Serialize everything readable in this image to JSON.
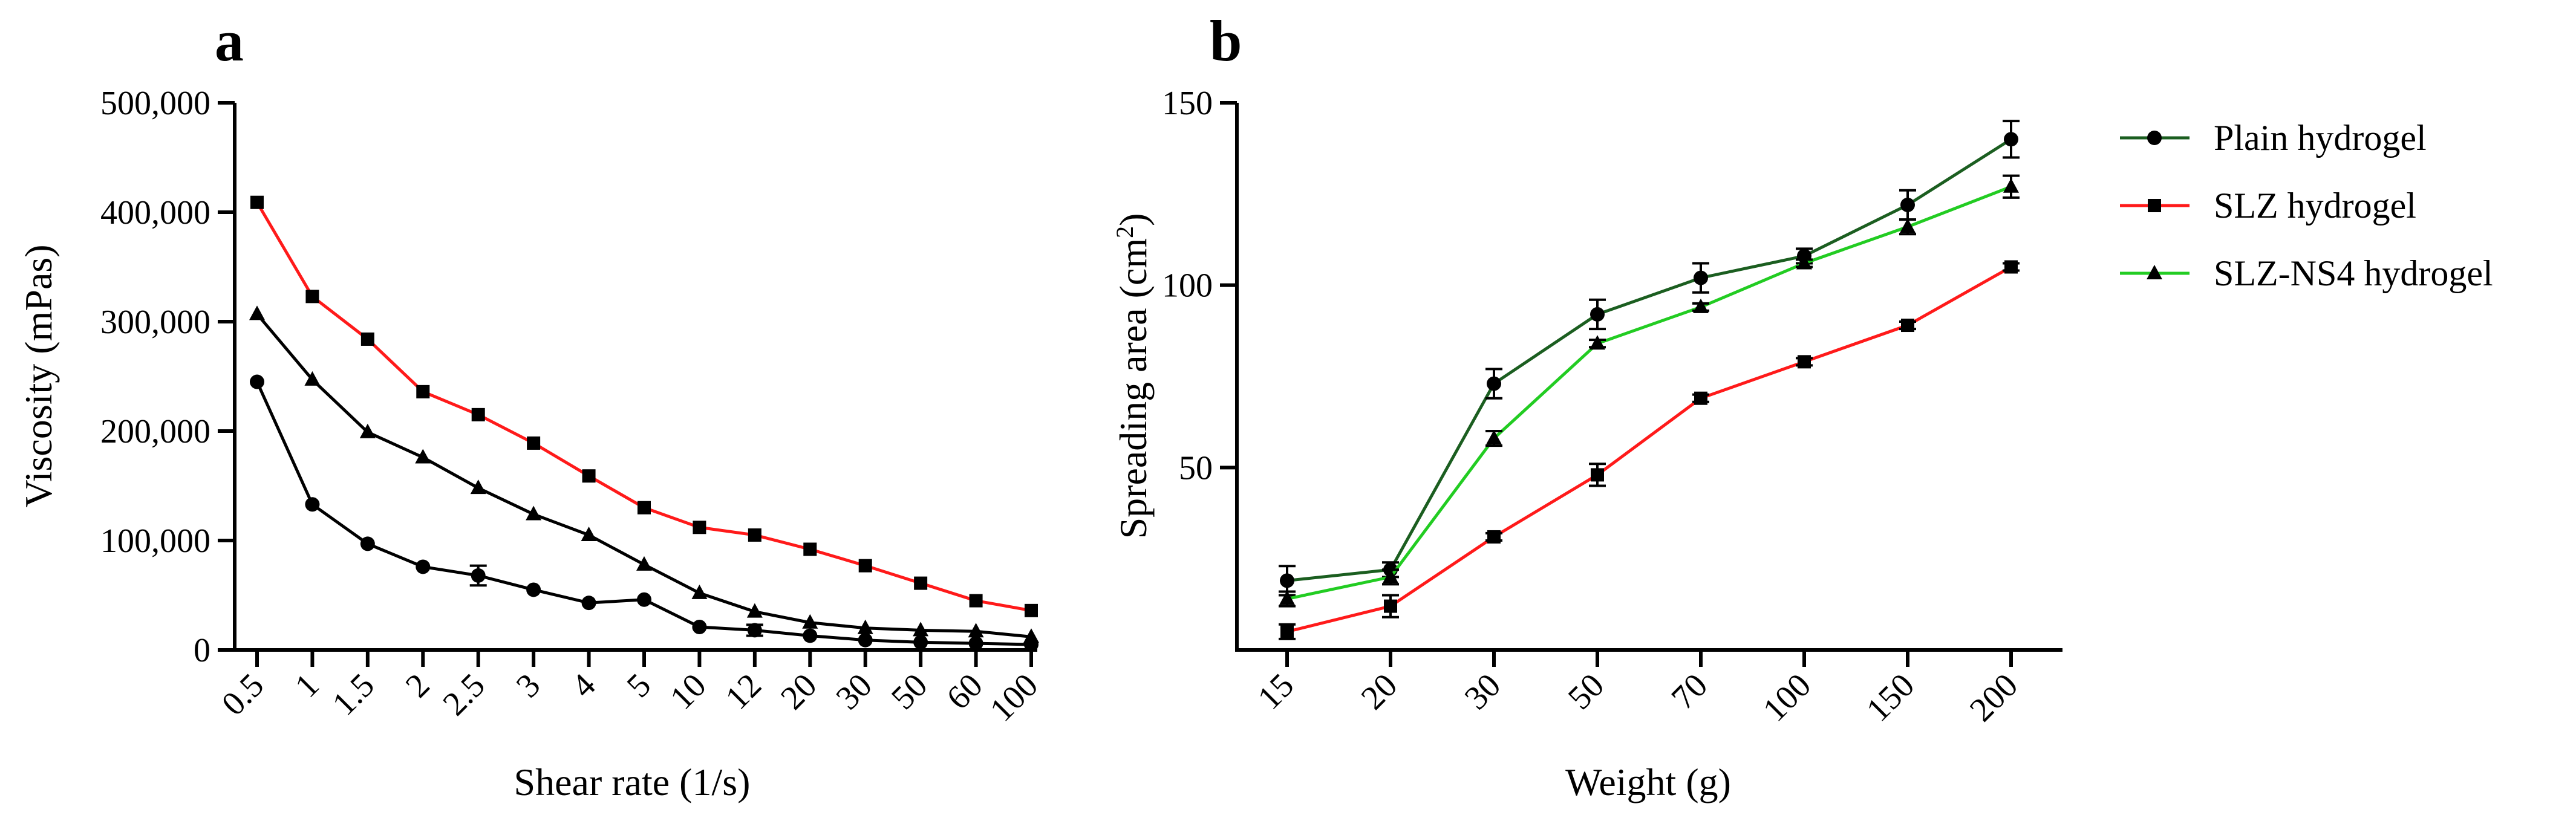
{
  "colors": {
    "plain": "#1b5e20",
    "slz": "#ff1a1a",
    "slz_ns4": "#22cc22",
    "black": "#000000"
  },
  "legend": {
    "items": [
      {
        "label": "Plain hydrogel",
        "color_key": "plain",
        "marker": "circle"
      },
      {
        "label": "SLZ hydrogel",
        "color_key": "slz",
        "marker": "square"
      },
      {
        "label": "SLZ-NS4 hydrogel",
        "color_key": "slz_ns4",
        "marker": "triangle"
      }
    ]
  },
  "chart_data": [
    {
      "panel": "a",
      "type": "line",
      "xlabel": "Shear rate (1/s)",
      "ylabel": "Viscosity (mPas)",
      "ylim": [
        0,
        500000
      ],
      "yticks": [
        0,
        100000,
        200000,
        300000,
        400000,
        500000
      ],
      "ytick_labels": [
        "0",
        "100,000",
        "200,000",
        "300,000",
        "400,000",
        "500,000"
      ],
      "categories": [
        "0.5",
        "1",
        "1.5",
        "2",
        "2.5",
        "3",
        "4",
        "5",
        "10",
        "12",
        "20",
        "30",
        "50",
        "60",
        "100"
      ],
      "series": [
        {
          "name": "circle series",
          "color_key": "black",
          "marker": "circle",
          "values": [
            245000,
            133000,
            97000,
            76000,
            68000,
            55000,
            43000,
            46000,
            21000,
            18000,
            13000,
            9000,
            7000,
            6000,
            5000
          ],
          "errors": [
            0,
            0,
            0,
            0,
            9000,
            0,
            0,
            0,
            0,
            5000,
            0,
            0,
            0,
            0,
            0
          ]
        },
        {
          "name": "triangle series",
          "color_key": "black",
          "marker": "triangle",
          "values": [
            307000,
            247000,
            199000,
            176000,
            148000,
            124000,
            105000,
            78000,
            52000,
            35000,
            25000,
            20000,
            18000,
            17000,
            12000
          ],
          "errors": [
            0,
            0,
            0,
            0,
            0,
            0,
            0,
            0,
            0,
            0,
            0,
            0,
            0,
            0,
            0
          ]
        },
        {
          "name": "square series",
          "color_key": "slz",
          "marker": "square",
          "values": [
            409000,
            323000,
            284000,
            236000,
            215000,
            189000,
            159000,
            130000,
            112000,
            105000,
            92000,
            77000,
            61000,
            45000,
            36000
          ],
          "errors": [
            0,
            0,
            0,
            0,
            0,
            0,
            0,
            0,
            0,
            0,
            0,
            0,
            0,
            0,
            0
          ]
        }
      ]
    },
    {
      "panel": "b",
      "type": "line",
      "xlabel": "Weight (g)",
      "ylabel_main": "Spreading area (cm",
      "ylabel_sup": "2",
      "ylabel_end": ")",
      "ylim": [
        0,
        150
      ],
      "yticks": [
        50,
        100,
        150
      ],
      "ytick_labels": [
        "50",
        "100",
        "150"
      ],
      "categories": [
        "15",
        "20",
        "30",
        "50",
        "70",
        "100",
        "150",
        "200"
      ],
      "series": [
        {
          "name": "Plain hydrogel",
          "color_key": "plain",
          "marker": "circle",
          "values": [
            19,
            22,
            73,
            92,
            102,
            108,
            122,
            140
          ],
          "errors": [
            4,
            2,
            4,
            4,
            4,
            2,
            4,
            5
          ]
        },
        {
          "name": "SLZ hydrogel",
          "color_key": "slz",
          "marker": "square",
          "values": [
            5,
            12,
            31,
            48,
            69,
            79,
            89,
            105
          ],
          "errors": [
            2,
            3,
            1,
            3,
            1,
            1,
            1,
            1
          ]
        },
        {
          "name": "SLZ-NS4 hydrogel",
          "color_key": "slz_ns4",
          "marker": "triangle",
          "values": [
            14,
            20,
            58,
            84,
            94,
            106,
            116,
            127
          ],
          "errors": [
            2,
            2,
            2,
            1,
            1,
            1,
            2,
            3
          ]
        }
      ]
    }
  ],
  "panels": {
    "a": {
      "letter": "a"
    },
    "b": {
      "letter": "b"
    }
  }
}
